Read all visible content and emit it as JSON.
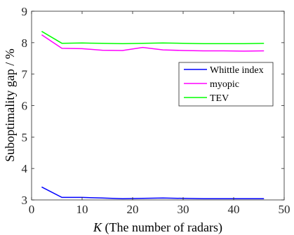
{
  "chart_data": {
    "type": "line",
    "title": "",
    "xlabel_var": "K",
    "xlabel": "(The number of radars)",
    "ylabel": "Suboptimality gap / %",
    "xlim": [
      0,
      50
    ],
    "ylim": [
      3,
      9
    ],
    "xticks": [
      0,
      10,
      20,
      30,
      40,
      50
    ],
    "yticks": [
      3,
      4,
      5,
      6,
      7,
      8,
      9
    ],
    "grid": false,
    "legend_position": "right",
    "series": [
      {
        "name": "Whittle index",
        "color": "#0000ff",
        "x": [
          2,
          6,
          10,
          14,
          18,
          22,
          26,
          30,
          34,
          38,
          42,
          46
        ],
        "y": [
          3.41,
          3.08,
          3.08,
          3.06,
          3.04,
          3.05,
          3.06,
          3.05,
          3.04,
          3.04,
          3.04,
          3.04
        ]
      },
      {
        "name": "myopic",
        "color": "#ff00ff",
        "x": [
          2,
          6,
          10,
          14,
          18,
          22,
          26,
          30,
          34,
          38,
          42,
          46
        ],
        "y": [
          8.25,
          7.82,
          7.81,
          7.76,
          7.75,
          7.85,
          7.77,
          7.75,
          7.74,
          7.74,
          7.73,
          7.74
        ]
      },
      {
        "name": "TEV",
        "color": "#00ff00",
        "x": [
          2,
          6,
          10,
          14,
          18,
          22,
          26,
          30,
          34,
          38,
          42,
          46
        ],
        "y": [
          8.36,
          7.98,
          7.99,
          7.98,
          7.97,
          7.98,
          7.99,
          7.98,
          7.97,
          7.97,
          7.97,
          7.98
        ]
      }
    ]
  }
}
